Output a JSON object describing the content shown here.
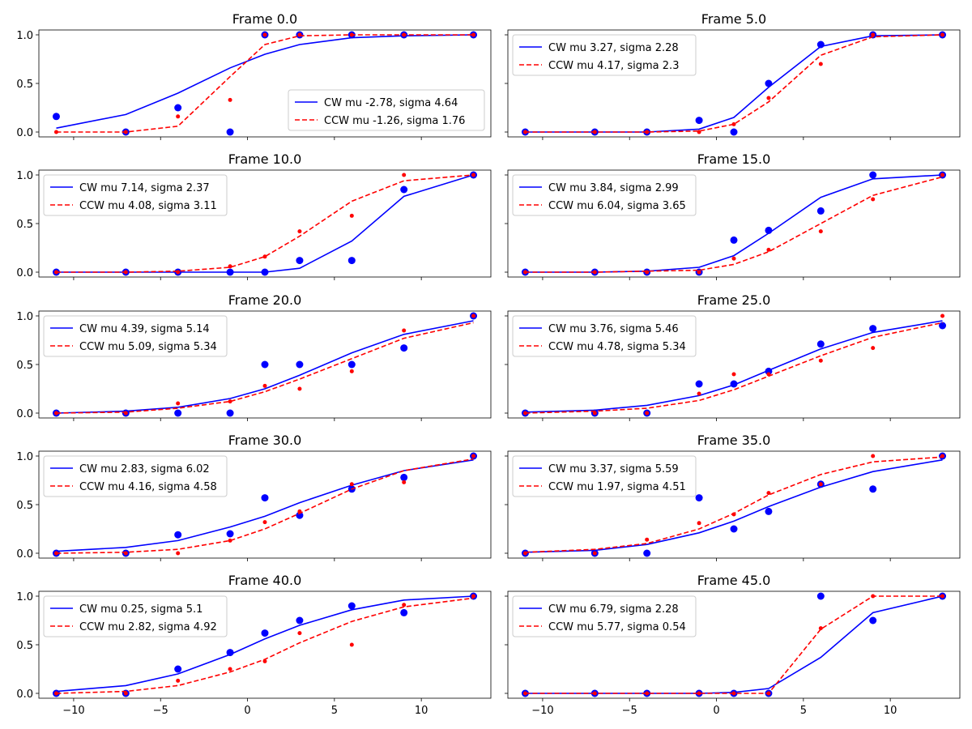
{
  "figure": {
    "xlim": [
      -12,
      14
    ],
    "ylim": [
      -0.05,
      1.05
    ],
    "xticks": [
      -10,
      -5,
      0,
      5,
      10
    ],
    "xtick_labels": [
      "−10",
      "−5",
      "0",
      "5",
      "10"
    ],
    "yticks": [
      0.0,
      0.5,
      1.0
    ],
    "ytick_labels": [
      "0.0",
      "0.5",
      "1.0"
    ],
    "colors": {
      "cw": "#0000ff",
      "ccw": "#ff0000"
    }
  },
  "chart_data": [
    {
      "type": "line",
      "title": "Frame 0.0",
      "x": [
        -11,
        -7,
        -4,
        -1,
        1,
        3,
        6,
        9,
        13
      ],
      "legend_loc": "lower-right",
      "series": [
        {
          "name": "CW mu -2.78, sigma 4.64",
          "style": "solid",
          "color": "#0000ff",
          "fit": [
            0.04,
            0.18,
            0.4,
            0.66,
            0.8,
            0.9,
            0.97,
            0.99,
            1.0
          ],
          "points": [
            0.16,
            0.0,
            0.25,
            0.0,
            1.0,
            1.0,
            1.0,
            1.0,
            1.0
          ]
        },
        {
          "name": "CCW mu -1.26, sigma 1.76",
          "style": "dashed",
          "color": "#ff0000",
          "fit": [
            0.0,
            0.0,
            0.06,
            0.57,
            0.9,
            0.99,
            1.0,
            1.0,
            1.0
          ],
          "points": [
            0.0,
            0.0,
            0.16,
            0.33,
            1.0,
            1.0,
            1.0,
            1.0,
            1.0
          ]
        }
      ]
    },
    {
      "type": "line",
      "title": "Frame 5.0",
      "x": [
        -11,
        -7,
        -4,
        -1,
        1,
        3,
        6,
        9,
        13
      ],
      "legend_loc": "upper-left",
      "series": [
        {
          "name": "CW mu 3.27, sigma 2.28",
          "style": "solid",
          "color": "#0000ff",
          "fit": [
            0.0,
            0.0,
            0.0,
            0.03,
            0.15,
            0.46,
            0.88,
            0.99,
            1.0
          ],
          "points": [
            0.0,
            0.0,
            0.0,
            0.12,
            0.0,
            0.5,
            0.9,
            1.0,
            1.0
          ]
        },
        {
          "name": "CCW mu 4.17, sigma 2.3",
          "style": "dashed",
          "color": "#ff0000",
          "fit": [
            0.0,
            0.0,
            0.0,
            0.01,
            0.08,
            0.31,
            0.79,
            0.98,
            1.0
          ],
          "points": [
            0.0,
            0.0,
            0.0,
            0.0,
            0.08,
            0.35,
            0.7,
            1.0,
            1.0
          ]
        }
      ]
    },
    {
      "type": "line",
      "title": "Frame 10.0",
      "x": [
        -11,
        -7,
        -4,
        -1,
        1,
        3,
        6,
        9,
        13
      ],
      "legend_loc": "upper-left",
      "series": [
        {
          "name": "CW mu 7.14, sigma 2.37",
          "style": "solid",
          "color": "#0000ff",
          "fit": [
            0.0,
            0.0,
            0.0,
            0.0,
            0.0,
            0.04,
            0.32,
            0.78,
            1.0
          ],
          "points": [
            0.0,
            0.0,
            0.0,
            0.0,
            0.0,
            0.12,
            0.12,
            0.85,
            1.0
          ]
        },
        {
          "name": "CCW mu 4.08, sigma 3.11",
          "style": "dashed",
          "color": "#ff0000",
          "fit": [
            0.0,
            0.0,
            0.01,
            0.05,
            0.16,
            0.37,
            0.73,
            0.94,
            1.0
          ],
          "points": [
            0.0,
            0.0,
            0.0,
            0.06,
            0.16,
            0.42,
            0.58,
            1.0,
            1.0
          ]
        }
      ]
    },
    {
      "type": "line",
      "title": "Frame 15.0",
      "x": [
        -11,
        -7,
        -4,
        -1,
        1,
        3,
        6,
        9,
        13
      ],
      "legend_loc": "upper-left",
      "series": [
        {
          "name": "CW mu 3.84, sigma 2.99",
          "style": "solid",
          "color": "#0000ff",
          "fit": [
            0.0,
            0.0,
            0.01,
            0.05,
            0.17,
            0.4,
            0.77,
            0.96,
            1.0
          ],
          "points": [
            0.0,
            0.0,
            0.0,
            0.0,
            0.33,
            0.43,
            0.63,
            1.0,
            1.0
          ]
        },
        {
          "name": "CCW mu 6.04, sigma 3.65",
          "style": "dashed",
          "color": "#ff0000",
          "fit": [
            0.0,
            0.0,
            0.01,
            0.02,
            0.08,
            0.21,
            0.5,
            0.79,
            0.98
          ],
          "points": [
            0.0,
            0.0,
            0.0,
            0.0,
            0.14,
            0.23,
            0.42,
            0.75,
            1.0
          ]
        }
      ]
    },
    {
      "type": "line",
      "title": "Frame 20.0",
      "x": [
        -11,
        -7,
        -4,
        -1,
        1,
        3,
        6,
        9,
        13
      ],
      "legend_loc": "upper-left",
      "series": [
        {
          "name": "CW mu 4.39, sigma 5.14",
          "style": "solid",
          "color": "#0000ff",
          "fit": [
            0.0,
            0.02,
            0.06,
            0.15,
            0.25,
            0.39,
            0.62,
            0.81,
            0.95
          ],
          "points": [
            0.0,
            0.0,
            0.0,
            0.0,
            0.5,
            0.5,
            0.5,
            0.67,
            1.0
          ]
        },
        {
          "name": "CCW mu 5.09, sigma 5.34",
          "style": "dashed",
          "color": "#ff0000",
          "fit": [
            0.0,
            0.01,
            0.05,
            0.12,
            0.22,
            0.35,
            0.56,
            0.77,
            0.93
          ],
          "points": [
            0.0,
            0.0,
            0.1,
            0.12,
            0.28,
            0.25,
            0.43,
            0.85,
            1.0
          ]
        }
      ]
    },
    {
      "type": "line",
      "title": "Frame 25.0",
      "x": [
        -11,
        -7,
        -4,
        -1,
        1,
        3,
        6,
        9,
        13
      ],
      "legend_loc": "upper-left",
      "series": [
        {
          "name": "CW mu 3.76, sigma 5.46",
          "style": "solid",
          "color": "#0000ff",
          "fit": [
            0.01,
            0.03,
            0.08,
            0.18,
            0.29,
            0.44,
            0.66,
            0.83,
            0.95
          ],
          "points": [
            0.0,
            0.0,
            0.0,
            0.3,
            0.3,
            0.43,
            0.71,
            0.87,
            0.9
          ]
        },
        {
          "name": "CCW mu 4.78, sigma 5.34",
          "style": "dashed",
          "color": "#ff0000",
          "fit": [
            0.0,
            0.02,
            0.05,
            0.13,
            0.24,
            0.38,
            0.59,
            0.78,
            0.93
          ],
          "points": [
            0.0,
            0.0,
            0.0,
            0.2,
            0.4,
            0.4,
            0.54,
            0.67,
            1.0
          ]
        }
      ]
    },
    {
      "type": "line",
      "title": "Frame 30.0",
      "x": [
        -11,
        -7,
        -4,
        -1,
        1,
        3,
        6,
        9,
        13
      ],
      "legend_loc": "upper-left",
      "series": [
        {
          "name": "CW mu 2.83, sigma 6.02",
          "style": "solid",
          "color": "#0000ff",
          "fit": [
            0.02,
            0.06,
            0.13,
            0.27,
            0.38,
            0.52,
            0.7,
            0.85,
            0.96
          ],
          "points": [
            0.0,
            0.0,
            0.19,
            0.2,
            0.57,
            0.39,
            0.66,
            0.78,
            1.0
          ]
        },
        {
          "name": "CCW mu 4.16, sigma 4.58",
          "style": "dashed",
          "color": "#ff0000",
          "fit": [
            0.0,
            0.01,
            0.04,
            0.13,
            0.25,
            0.41,
            0.66,
            0.85,
            0.97
          ],
          "points": [
            0.0,
            0.0,
            0.0,
            0.13,
            0.32,
            0.43,
            0.71,
            0.73,
            1.0
          ]
        }
      ]
    },
    {
      "type": "line",
      "title": "Frame 35.0",
      "x": [
        -11,
        -7,
        -4,
        -1,
        1,
        3,
        6,
        9,
        13
      ],
      "legend_loc": "upper-left",
      "series": [
        {
          "name": "CW mu 3.37, sigma 5.59",
          "style": "solid",
          "color": "#0000ff",
          "fit": [
            0.01,
            0.03,
            0.09,
            0.21,
            0.33,
            0.48,
            0.68,
            0.84,
            0.96
          ],
          "points": [
            0.0,
            0.0,
            0.0,
            0.57,
            0.25,
            0.43,
            0.71,
            0.66,
            1.0
          ]
        },
        {
          "name": "CCW mu 1.97, sigma 4.51",
          "style": "dashed",
          "color": "#ff0000",
          "fit": [
            0.01,
            0.04,
            0.1,
            0.25,
            0.41,
            0.6,
            0.81,
            0.94,
            0.99
          ],
          "points": [
            0.0,
            0.0,
            0.14,
            0.31,
            0.4,
            0.62,
            0.71,
            1.0,
            1.0
          ]
        }
      ]
    },
    {
      "type": "line",
      "title": "Frame 40.0",
      "x": [
        -11,
        -7,
        -4,
        -1,
        1,
        3,
        6,
        9,
        13
      ],
      "legend_loc": "upper-left",
      "series": [
        {
          "name": "CW mu 0.25, sigma 5.1",
          "style": "solid",
          "color": "#0000ff",
          "fit": [
            0.02,
            0.08,
            0.2,
            0.4,
            0.56,
            0.7,
            0.86,
            0.96,
            1.0
          ],
          "points": [
            0.0,
            0.0,
            0.25,
            0.42,
            0.62,
            0.75,
            0.9,
            0.83,
            1.0
          ]
        },
        {
          "name": "CCW mu 2.82, sigma 4.92",
          "style": "dashed",
          "color": "#ff0000",
          "fit": [
            0.0,
            0.02,
            0.08,
            0.22,
            0.35,
            0.52,
            0.74,
            0.89,
            0.98
          ],
          "points": [
            0.0,
            0.0,
            0.13,
            0.25,
            0.33,
            0.62,
            0.5,
            0.91,
            1.0
          ]
        }
      ]
    },
    {
      "type": "line",
      "title": "Frame 45.0",
      "x": [
        -11,
        -7,
        -4,
        -1,
        1,
        3,
        6,
        9,
        13
      ],
      "legend_loc": "upper-left",
      "series": [
        {
          "name": "CW mu 6.79, sigma 2.28",
          "style": "solid",
          "color": "#0000ff",
          "fit": [
            0.0,
            0.0,
            0.0,
            0.0,
            0.01,
            0.05,
            0.37,
            0.83,
            1.0
          ],
          "points": [
            0.0,
            0.0,
            0.0,
            0.0,
            0.0,
            0.0,
            1.0,
            0.75,
            1.0
          ]
        },
        {
          "name": "CCW mu 5.77, sigma 0.54",
          "style": "dashed",
          "color": "#ff0000",
          "fit": [
            0.0,
            0.0,
            0.0,
            0.0,
            0.0,
            0.0,
            0.66,
            1.0,
            1.0
          ],
          "points": [
            0.0,
            0.0,
            0.0,
            0.0,
            0.0,
            0.0,
            0.67,
            1.0,
            1.0
          ]
        }
      ]
    }
  ]
}
